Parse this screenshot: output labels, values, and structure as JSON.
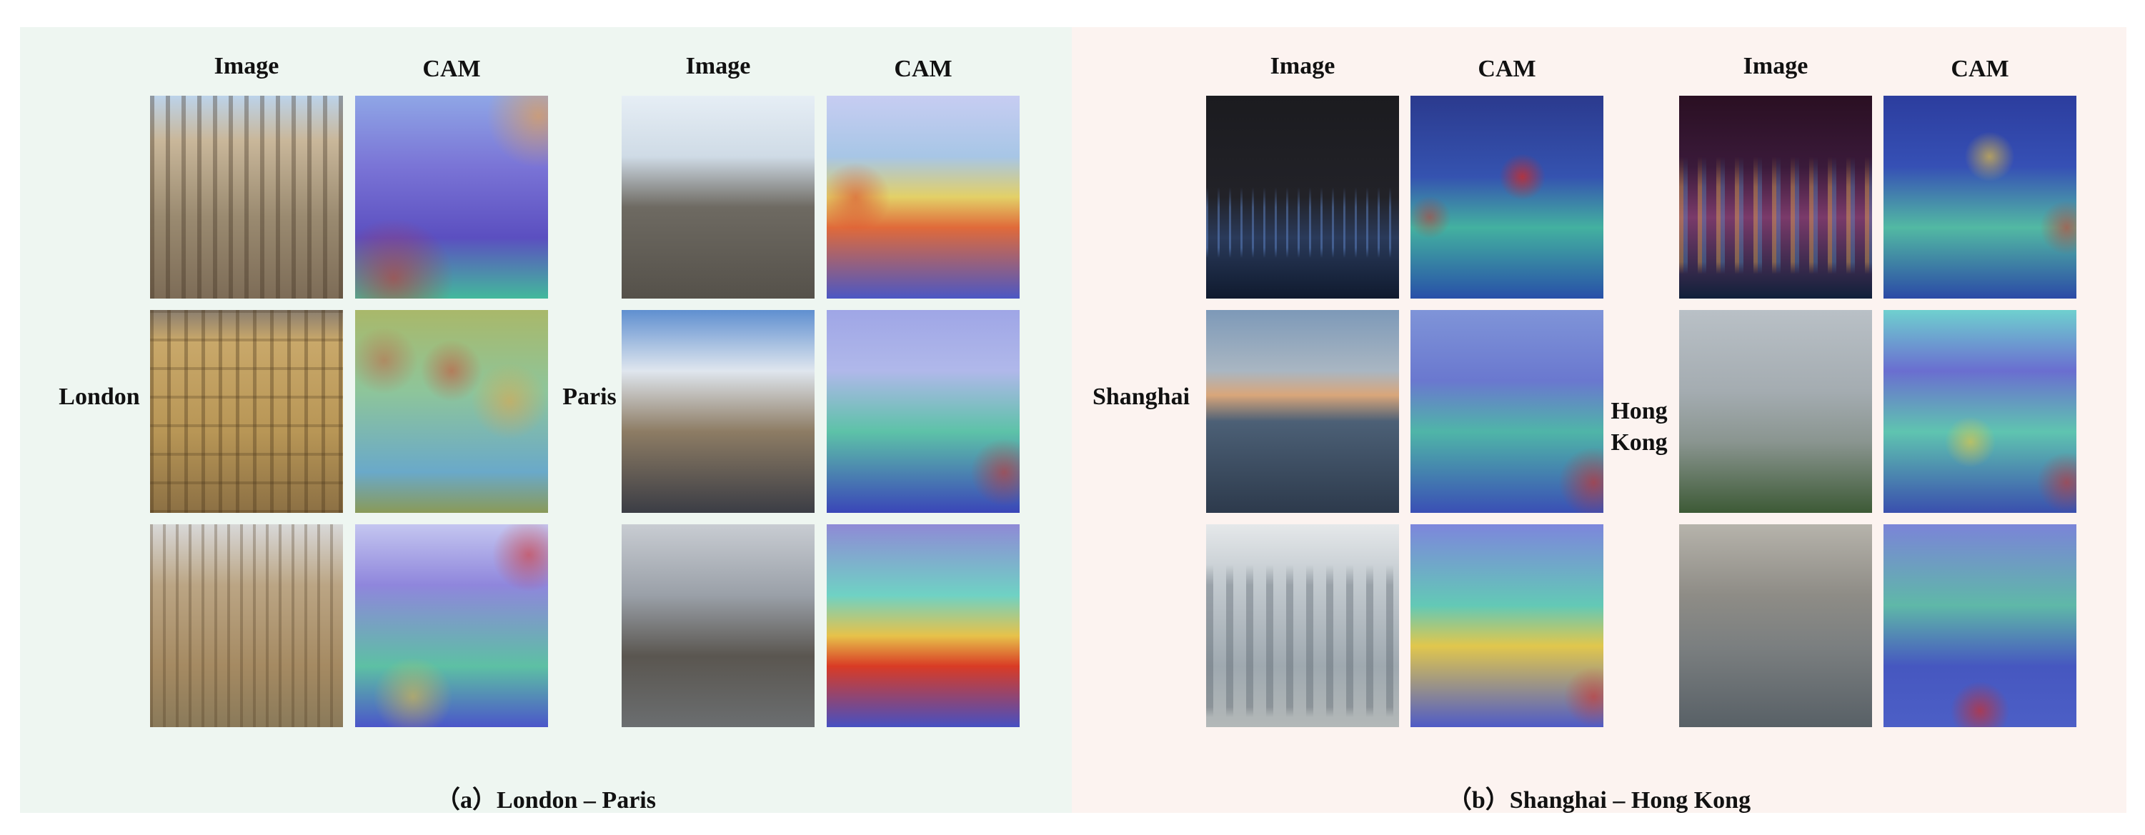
{
  "panel_a": {
    "caption": "（a）London – Paris",
    "groups": [
      {
        "city": "London",
        "image_header": "Image",
        "cam_header": "CAM"
      },
      {
        "city": "Paris",
        "image_header": "Image",
        "cam_header": "CAM"
      }
    ]
  },
  "panel_b": {
    "caption": "（b）Shanghai – Hong Kong",
    "groups": [
      {
        "city": "Shanghai",
        "image_header": "Image",
        "cam_header": "CAM"
      },
      {
        "city": "Hong Kong",
        "image_header": "Image",
        "cam_header": "CAM"
      }
    ]
  },
  "colors": {
    "panel_a_bg": "#eef6f1",
    "panel_b_bg": "#fcf3f0",
    "cam_hot": "#d62a1e",
    "cam_warm": "#f2d23a",
    "cam_mid": "#37c7b0",
    "cam_cool": "#3b4fd8"
  }
}
